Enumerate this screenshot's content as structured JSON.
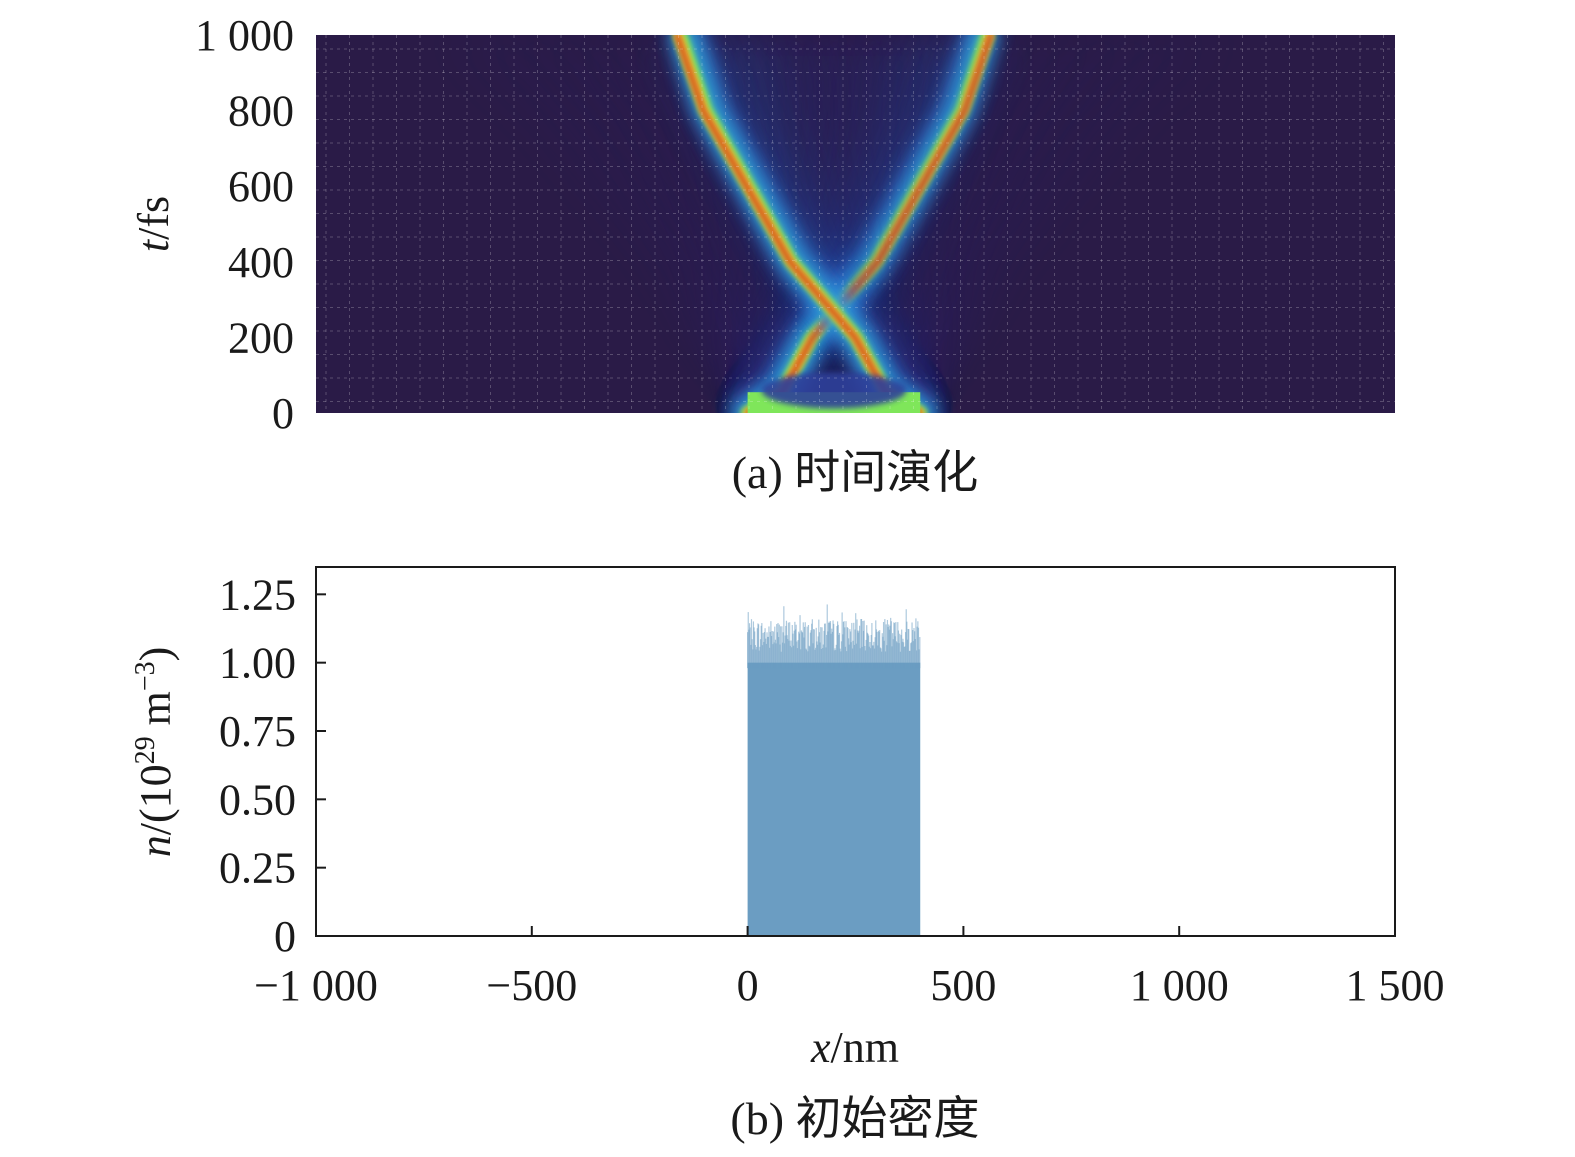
{
  "colors": {
    "plot_a_background": "#2a1b47",
    "colormap": [
      "#2a1b47",
      "#2f3f9a",
      "#2b6fd8",
      "#30b7d6",
      "#7fe65a",
      "#f2d23a",
      "#f0731f",
      "#c0301a"
    ],
    "plot_b_bar": "#6b9dc2",
    "axis": "#1a1a1a"
  },
  "chart_data": [
    {
      "type": "heatmap",
      "panel": "(a)",
      "caption": "(a) 时间演化",
      "ylabel": "t/fs",
      "ylabel_var": "t",
      "ylabel_unit": "/fs",
      "ylim": [
        0,
        1000
      ],
      "xlim": [
        -1000,
        1500
      ],
      "y_ticks": [
        0,
        200,
        400,
        600,
        800,
        1000
      ],
      "y_tick_labels": [
        "0",
        "200",
        "400",
        "600",
        "800",
        "1 000"
      ],
      "grid": true,
      "description_series": [
        {
          "name": "left front",
          "points": [
            [
              0,
              0
            ],
            [
              80,
              55
            ],
            [
              150,
              200
            ],
            [
              300,
              400
            ],
            [
              400,
              600
            ],
            [
              500,
              800
            ],
            [
              560,
              1000
            ]
          ]
        },
        {
          "name": "right front",
          "points": [
            [
              400,
              0
            ],
            [
              320,
              55
            ],
            [
              250,
              200
            ],
            [
              100,
              400
            ],
            [
              0,
              600
            ],
            [
              -100,
              800
            ],
            [
              -160,
              1000
            ]
          ]
        }
      ]
    },
    {
      "type": "bar",
      "panel": "(b)",
      "caption": "(b) 初始密度",
      "xlabel": "x/nm",
      "xlabel_var": "x",
      "xlabel_unit": "/nm",
      "ylabel_var": "n",
      "ylabel_pre": "/(10",
      "ylabel_sup1": "29",
      "ylabel_mid": " m",
      "ylabel_sup2": "−3",
      "ylabel_post": ")",
      "xlim": [
        -1000,
        1500
      ],
      "ylim": [
        0,
        1.35
      ],
      "x_ticks": [
        -1000,
        -500,
        0,
        500,
        1000,
        1500
      ],
      "x_tick_labels": [
        "−1 000",
        "−500",
        "0",
        "500",
        "1 000",
        "1 500"
      ],
      "y_ticks": [
        0,
        0.25,
        0.5,
        0.75,
        1.0,
        1.25
      ],
      "y_tick_labels": [
        "0",
        "0.25",
        "0.50",
        "0.75",
        "1.00",
        "1.25"
      ],
      "grid": false,
      "density_region": {
        "x_start": 0,
        "x_end": 400,
        "mean": 1.1,
        "max": 1.28,
        "min": 0.98
      }
    }
  ]
}
